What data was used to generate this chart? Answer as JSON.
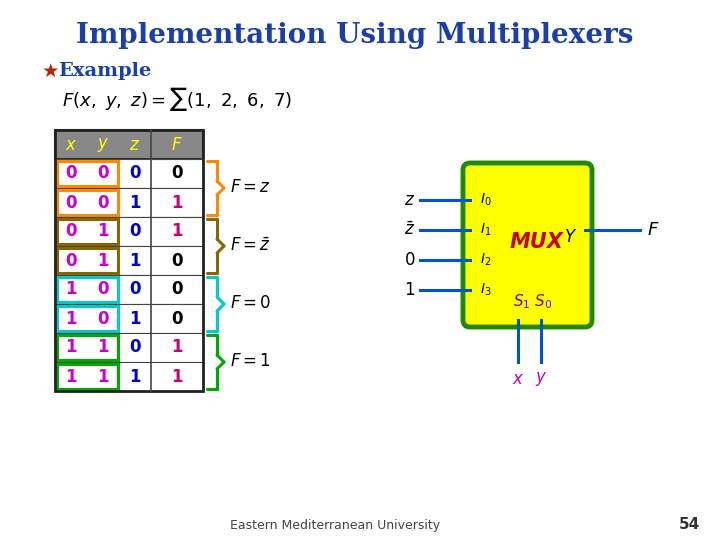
{
  "title": "Implementation Using Multiplexers",
  "title_color": "#1a3faa",
  "bg_color": "#ffffff",
  "subtitle_bullet": "★",
  "subtitle_bullet_color": "#bb2200",
  "subtitle": "Example",
  "subtitle_color": "#1a3faa",
  "table_header": [
    "x",
    "y",
    "z",
    "F"
  ],
  "table_header_color": "#ffff00",
  "table_header_bg": "#888888",
  "table_data": [
    [
      0,
      0,
      0,
      0
    ],
    [
      0,
      0,
      1,
      1
    ],
    [
      0,
      1,
      0,
      1
    ],
    [
      0,
      1,
      1,
      0
    ],
    [
      1,
      0,
      0,
      0
    ],
    [
      1,
      0,
      1,
      0
    ],
    [
      1,
      1,
      0,
      1
    ],
    [
      1,
      1,
      1,
      1
    ]
  ],
  "xy_color": "#cc00cc",
  "z_color": "#0000cc",
  "row_box_colors": [
    "#ff8800",
    "#ff8800",
    "#886600",
    "#886600",
    "#00cccc",
    "#00cccc",
    "#00aa00",
    "#00aa00"
  ],
  "row_F_colors": [
    "#000000",
    "#cc0077",
    "#cc0077",
    "#000000",
    "#000000",
    "#000000",
    "#cc0077",
    "#cc0077"
  ],
  "brace_colors": [
    "#ff8800",
    "#886600",
    "#00cccc",
    "#00aa00"
  ],
  "mux_fill": "#ffff00",
  "mux_edge": "#228800",
  "mux_label_color": "#cc0000",
  "mux_select_color": "#880088",
  "mux_xy_color": "#cc00cc",
  "mux_line_color": "#0055cc",
  "output_label_color": "#000000",
  "footer": "Eastern Mediterranean University",
  "page_num": "54"
}
